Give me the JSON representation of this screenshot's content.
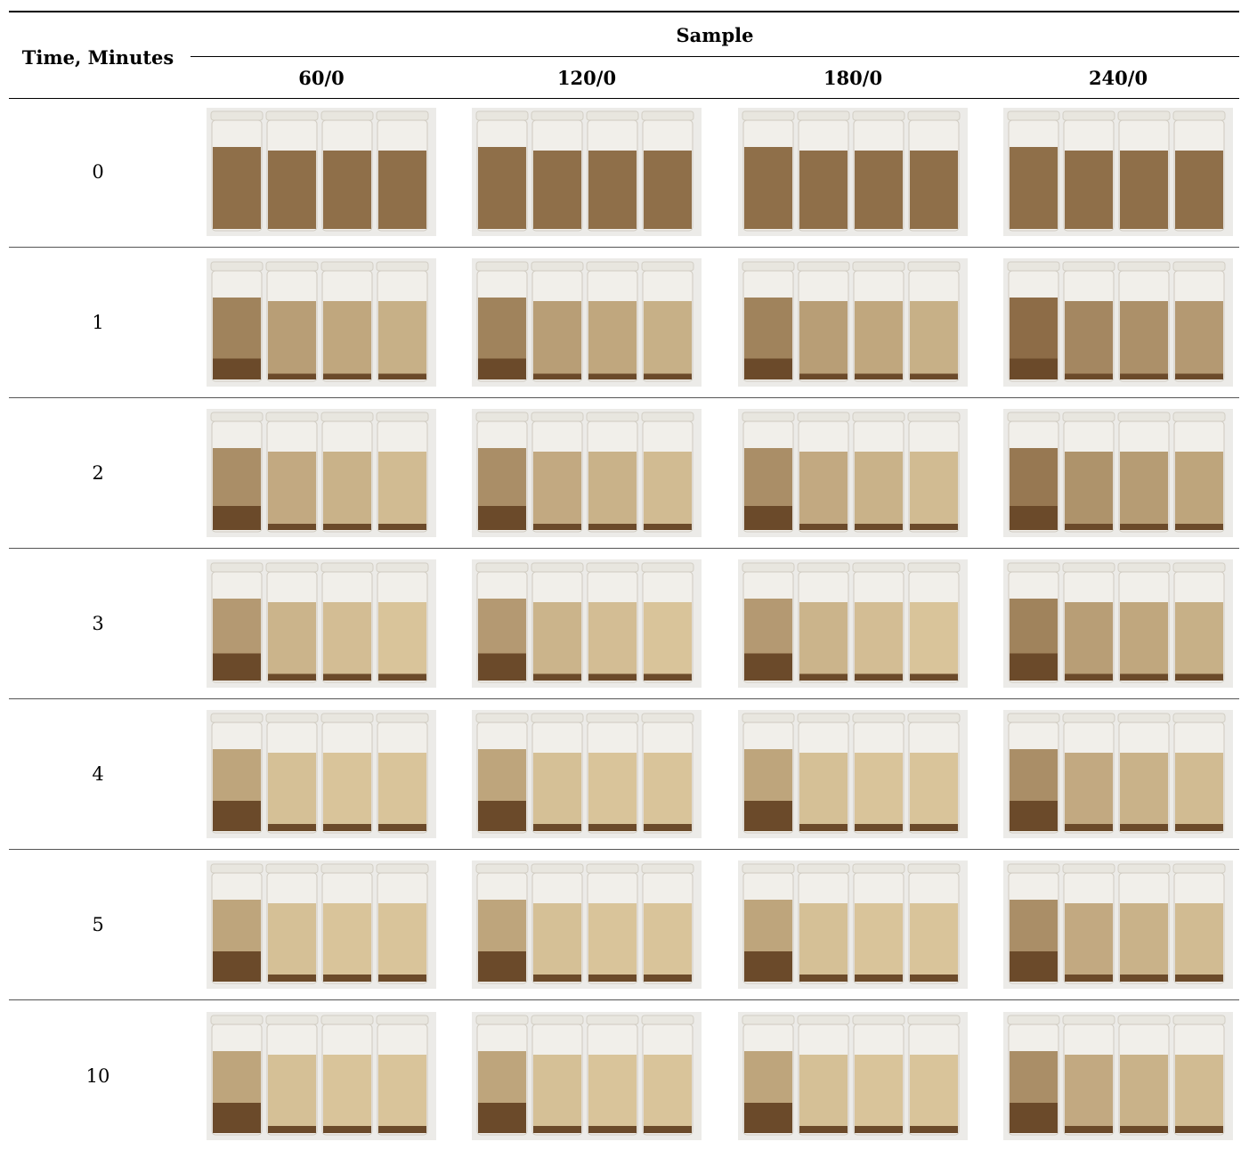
{
  "table": {
    "time_header": "Time, Minutes",
    "sample_header": "Sample",
    "columns": [
      "60/0",
      "120/0",
      "180/0",
      "240/0"
    ],
    "rows": [
      {
        "time": "0"
      },
      {
        "time": "1"
      },
      {
        "time": "2"
      },
      {
        "time": "3"
      },
      {
        "time": "4"
      },
      {
        "time": "5"
      },
      {
        "time": "10"
      }
    ]
  },
  "colors": {
    "rule": "#000000",
    "backdrop": "#ecebe8",
    "cap": "#e8e6df",
    "glass_empty": "#f1efea",
    "sediment": "#6b4a2a",
    "liquid_dark": "#8b6a45",
    "liquid_light": "#d9c49a"
  }
}
